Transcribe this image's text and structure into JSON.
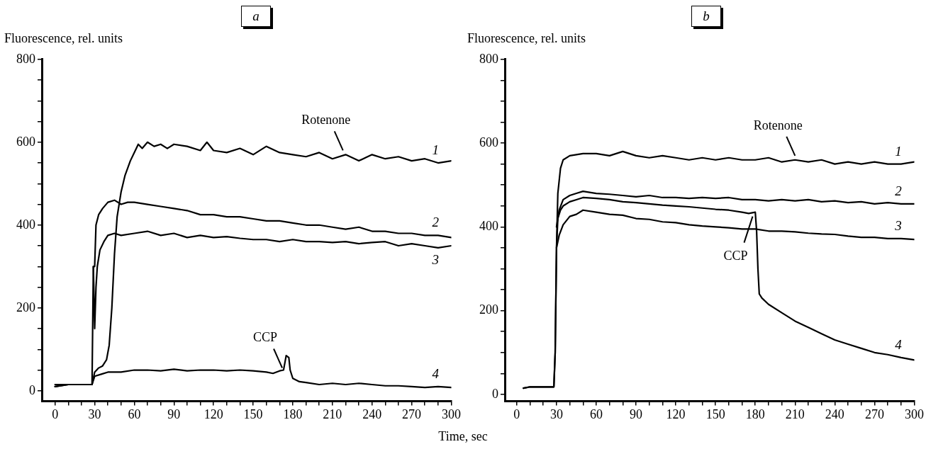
{
  "chart_data": [
    {
      "type": "line",
      "title": "a",
      "ylabel": "Fluorescence, rel. units",
      "xlabel": "Time, sec",
      "xlim": [
        -10,
        300
      ],
      "ylim": [
        -25,
        800
      ],
      "marker": "none",
      "line_style": "solid",
      "legend": false,
      "grid": false,
      "xticks": [
        0,
        {
          "value": 10,
          "label": null
        },
        {
          "value": 20,
          "label": null
        },
        30,
        {
          "value": 40,
          "label": null
        },
        {
          "value": 50,
          "label": null
        },
        60,
        {
          "value": 70,
          "label": null
        },
        {
          "value": 80,
          "label": null
        },
        90,
        {
          "value": 100,
          "label": null
        },
        {
          "value": 110,
          "label": null
        },
        120,
        {
          "value": 130,
          "label": null
        },
        {
          "value": 140,
          "label": null
        },
        150,
        {
          "value": 160,
          "label": null
        },
        {
          "value": 170,
          "label": null
        },
        180,
        {
          "value": 190,
          "label": null
        },
        {
          "value": 200,
          "label": null
        },
        210,
        {
          "value": 220,
          "label": null
        },
        {
          "value": 230,
          "label": null
        },
        240,
        {
          "value": 250,
          "label": null
        },
        {
          "value": 260,
          "label": null
        },
        270,
        {
          "value": 280,
          "label": null
        },
        {
          "value": 290,
          "label": null
        },
        300
      ],
      "yticks": [
        0,
        {
          "value": 50,
          "label": null
        },
        {
          "value": 100,
          "label": null
        },
        {
          "value": 150,
          "label": null
        },
        200,
        {
          "value": 250,
          "label": null
        },
        {
          "value": 300,
          "label": null
        },
        {
          "value": 350,
          "label": null
        },
        400,
        {
          "value": 450,
          "label": null
        },
        {
          "value": 500,
          "label": null
        },
        {
          "value": 550,
          "label": null
        },
        600,
        {
          "value": 650,
          "label": null
        },
        {
          "value": 700,
          "label": null
        },
        {
          "value": 750,
          "label": null
        },
        800
      ],
      "series": [
        {
          "name": "1",
          "color": "#000000",
          "x": [
            0,
            10,
            20,
            28,
            30,
            33,
            36,
            39,
            41,
            43,
            45,
            47,
            50,
            53,
            57,
            60,
            63,
            66,
            70,
            75,
            80,
            85,
            90,
            100,
            110,
            115,
            120,
            130,
            140,
            150,
            160,
            170,
            180,
            190,
            200,
            210,
            220,
            230,
            240,
            250,
            260,
            270,
            280,
            290,
            300
          ],
          "values": [
            10,
            15,
            15,
            15,
            45,
            55,
            60,
            75,
            110,
            200,
            330,
            420,
            480,
            520,
            555,
            575,
            595,
            585,
            600,
            590,
            595,
            585,
            595,
            590,
            580,
            600,
            580,
            575,
            585,
            570,
            590,
            575,
            570,
            565,
            575,
            560,
            570,
            555,
            570,
            560,
            565,
            555,
            560,
            550,
            555
          ]
        },
        {
          "name": "2",
          "color": "#000000",
          "x": [
            0,
            10,
            20,
            28,
            29,
            30,
            31,
            33,
            36,
            40,
            45,
            50,
            55,
            60,
            70,
            80,
            90,
            100,
            110,
            120,
            130,
            140,
            150,
            160,
            170,
            180,
            190,
            200,
            210,
            220,
            230,
            240,
            250,
            260,
            270,
            280,
            290,
            300
          ],
          "values": [
            15,
            15,
            15,
            15,
            300,
            300,
            400,
            425,
            440,
            455,
            460,
            450,
            455,
            455,
            450,
            445,
            440,
            435,
            425,
            425,
            420,
            420,
            415,
            410,
            410,
            405,
            400,
            400,
            395,
            390,
            395,
            385,
            385,
            380,
            380,
            375,
            375,
            370
          ]
        },
        {
          "name": "3",
          "color": "#000000",
          "x": [
            29,
            30,
            31,
            32,
            34,
            37,
            40,
            45,
            50,
            60,
            70,
            80,
            90,
            100,
            110,
            120,
            130,
            140,
            150,
            160,
            170,
            180,
            190,
            200,
            210,
            220,
            230,
            240,
            250,
            260,
            270,
            280,
            290,
            300
          ],
          "values": [
            300,
            150,
            250,
            300,
            340,
            360,
            375,
            380,
            375,
            380,
            385,
            375,
            380,
            370,
            375,
            370,
            372,
            368,
            365,
            365,
            360,
            365,
            360,
            360,
            358,
            360,
            355,
            358,
            360,
            350,
            355,
            350,
            345,
            350
          ]
        },
        {
          "name": "4",
          "color": "#000000",
          "x": [
            0,
            10,
            20,
            28,
            30,
            35,
            40,
            50,
            60,
            70,
            80,
            90,
            100,
            110,
            120,
            130,
            140,
            150,
            160,
            165,
            170,
            173,
            175,
            177,
            178,
            180,
            185,
            190,
            200,
            210,
            220,
            230,
            240,
            250,
            260,
            270,
            280,
            290,
            300
          ],
          "values": [
            10,
            15,
            15,
            15,
            35,
            40,
            45,
            45,
            50,
            50,
            48,
            52,
            48,
            50,
            50,
            48,
            50,
            48,
            45,
            42,
            48,
            50,
            85,
            80,
            50,
            30,
            22,
            20,
            15,
            18,
            15,
            18,
            15,
            12,
            12,
            10,
            8,
            10,
            8
          ]
        }
      ],
      "annotations": [
        {
          "text": "Rotenone",
          "x": 218,
          "y": 575
        },
        {
          "text": "CCP",
          "x": 172,
          "y": 50
        }
      ]
    },
    {
      "type": "line",
      "title": "b",
      "ylabel": "Fluorescence, rel. units",
      "xlim": [
        -9,
        300
      ],
      "ylim": [
        -16,
        800
      ],
      "marker": "none",
      "line_style": "solid",
      "legend": false,
      "grid": false,
      "xticks": [
        0,
        {
          "value": 10,
          "label": null
        },
        {
          "value": 20,
          "label": null
        },
        30,
        {
          "value": 40,
          "label": null
        },
        {
          "value": 50,
          "label": null
        },
        60,
        {
          "value": 70,
          "label": null
        },
        {
          "value": 80,
          "label": null
        },
        90,
        {
          "value": 100,
          "label": null
        },
        {
          "value": 110,
          "label": null
        },
        120,
        {
          "value": 130,
          "label": null
        },
        {
          "value": 140,
          "label": null
        },
        150,
        {
          "value": 160,
          "label": null
        },
        {
          "value": 170,
          "label": null
        },
        180,
        {
          "value": 190,
          "label": null
        },
        {
          "value": 200,
          "label": null
        },
        210,
        {
          "value": 220,
          "label": null
        },
        {
          "value": 230,
          "label": null
        },
        240,
        {
          "value": 250,
          "label": null
        },
        {
          "value": 260,
          "label": null
        },
        270,
        {
          "value": 280,
          "label": null
        },
        {
          "value": 290,
          "label": null
        },
        300
      ],
      "yticks": [
        0,
        {
          "value": 50,
          "label": null
        },
        {
          "value": 100,
          "label": null
        },
        {
          "value": 150,
          "label": null
        },
        200,
        {
          "value": 250,
          "label": null
        },
        {
          "value": 300,
          "label": null
        },
        {
          "value": 350,
          "label": null
        },
        400,
        {
          "value": 450,
          "label": null
        },
        {
          "value": 500,
          "label": null
        },
        {
          "value": 550,
          "label": null
        },
        600,
        {
          "value": 650,
          "label": null
        },
        {
          "value": 700,
          "label": null
        },
        {
          "value": 750,
          "label": null
        },
        800
      ],
      "series": [
        {
          "name": "1",
          "color": "#000000",
          "x": [
            5,
            10,
            20,
            28,
            29,
            30,
            31,
            33,
            35,
            40,
            50,
            60,
            70,
            80,
            90,
            100,
            110,
            120,
            130,
            140,
            150,
            160,
            170,
            180,
            190,
            200,
            210,
            220,
            230,
            240,
            250,
            260,
            270,
            280,
            290,
            300
          ],
          "values": [
            15,
            18,
            18,
            18,
            100,
            350,
            480,
            540,
            560,
            570,
            575,
            575,
            570,
            580,
            570,
            565,
            570,
            565,
            560,
            565,
            560,
            565,
            560,
            560,
            565,
            555,
            560,
            555,
            560,
            550,
            555,
            550,
            555,
            550,
            550,
            555
          ]
        },
        {
          "name": "2",
          "color": "#000000",
          "x": [
            30,
            32,
            35,
            40,
            45,
            50,
            60,
            70,
            80,
            90,
            100,
            110,
            120,
            130,
            140,
            150,
            160,
            170,
            180,
            190,
            200,
            210,
            220,
            230,
            240,
            250,
            260,
            270,
            280,
            290,
            300
          ],
          "values": [
            400,
            440,
            465,
            475,
            480,
            485,
            480,
            478,
            475,
            472,
            475,
            470,
            470,
            468,
            470,
            468,
            470,
            465,
            465,
            462,
            465,
            462,
            465,
            460,
            462,
            458,
            460,
            455,
            458,
            455,
            455
          ]
        },
        {
          "name": "3",
          "color": "#000000",
          "x": [
            30,
            32,
            35,
            40,
            45,
            50,
            60,
            70,
            80,
            90,
            100,
            110,
            120,
            130,
            140,
            150,
            160,
            170,
            180,
            190,
            200,
            210,
            220,
            230,
            240,
            250,
            260,
            270,
            280,
            290,
            300
          ],
          "values": [
            350,
            380,
            405,
            425,
            430,
            440,
            435,
            430,
            428,
            420,
            418,
            412,
            410,
            405,
            402,
            400,
            398,
            395,
            395,
            390,
            390,
            388,
            385,
            383,
            382,
            378,
            375,
            375,
            372,
            372,
            370
          ]
        },
        {
          "name": "4",
          "color": "#000000",
          "x": [
            5,
            10,
            20,
            28,
            29,
            30,
            31,
            33,
            35,
            40,
            45,
            50,
            60,
            70,
            80,
            90,
            100,
            110,
            120,
            130,
            140,
            150,
            160,
            170,
            175,
            180,
            181,
            182,
            183,
            185,
            190,
            200,
            210,
            220,
            230,
            240,
            250,
            260,
            270,
            280,
            290,
            300
          ],
          "values": [
            15,
            18,
            18,
            18,
            100,
            350,
            420,
            440,
            450,
            460,
            465,
            470,
            468,
            465,
            460,
            458,
            455,
            452,
            450,
            448,
            445,
            442,
            440,
            435,
            432,
            435,
            390,
            300,
            240,
            230,
            215,
            195,
            175,
            160,
            145,
            130,
            120,
            110,
            100,
            95,
            88,
            82
          ]
        }
      ],
      "annotations": [
        {
          "text": "Rotenone",
          "x": 210,
          "y": 565
        },
        {
          "text": "CCP",
          "x": 178,
          "y": 430
        }
      ]
    }
  ]
}
